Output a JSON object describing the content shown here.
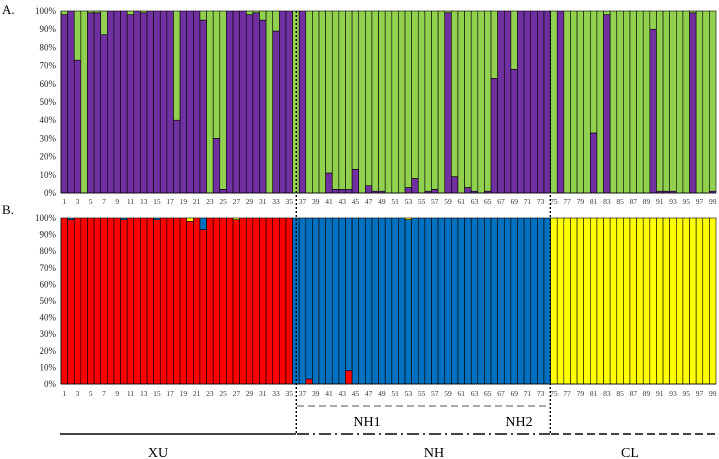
{
  "chart_data": [
    {
      "type": "bar",
      "stacked": true,
      "panel_label": "A.",
      "x": [
        1,
        2,
        3,
        4,
        5,
        6,
        7,
        8,
        9,
        10,
        11,
        12,
        13,
        14,
        15,
        16,
        17,
        18,
        19,
        20,
        21,
        22,
        23,
        24,
        25,
        26,
        27,
        28,
        29,
        30,
        31,
        32,
        33,
        34,
        35,
        36,
        37,
        38,
        39,
        40,
        41,
        42,
        43,
        44,
        45,
        46,
        47,
        48,
        49,
        50,
        51,
        52,
        53,
        54,
        55,
        56,
        57,
        58,
        59,
        60,
        61,
        62,
        63,
        64,
        65,
        66,
        67,
        68,
        69,
        70,
        71,
        72,
        73,
        74,
        75,
        76,
        77,
        78,
        79,
        80,
        81,
        82,
        83,
        84,
        85,
        86,
        87,
        88,
        89,
        90,
        91,
        92,
        93,
        94,
        95,
        96,
        97,
        98,
        99
      ],
      "x_tick_labels": [
        "1",
        "3",
        "5",
        "7",
        "9",
        "11",
        "13",
        "15",
        "17",
        "19",
        "21",
        "23",
        "25",
        "27",
        "29",
        "31",
        "33",
        "35",
        "37",
        "39",
        "41",
        "43",
        "45",
        "47",
        "49",
        "51",
        "53",
        "55",
        "57",
        "59",
        "61",
        "63",
        "65",
        "67",
        "69",
        "71",
        "73",
        "75",
        "77",
        "79",
        "81",
        "83",
        "85",
        "87",
        "89",
        "91",
        "93",
        "95",
        "97",
        "99"
      ],
      "y_tick_labels": [
        "0%",
        "10%",
        "20%",
        "30%",
        "40%",
        "50%",
        "60%",
        "70%",
        "80%",
        "90%",
        "100%"
      ],
      "ylim": [
        0,
        1
      ],
      "series": [
        {
          "color": "#7030a0",
          "values": [
            0.98,
            1.0,
            0.73,
            0.0,
            0.99,
            0.99,
            0.87,
            1.0,
            1.0,
            1.0,
            0.98,
            1.0,
            0.99,
            1.0,
            1.0,
            1.0,
            1.0,
            0.4,
            1.0,
            1.0,
            1.0,
            0.95,
            0.0,
            0.3,
            0.02,
            1.0,
            1.0,
            1.0,
            0.98,
            0.99,
            0.95,
            0.0,
            0.89,
            1.0,
            1.0,
            0.0,
            1.0,
            0.0,
            0.0,
            0.0,
            0.11,
            0.02,
            0.02,
            0.02,
            0.13,
            0.0,
            0.04,
            0.01,
            0.01,
            0.0,
            0.0,
            0.0,
            0.03,
            0.08,
            0.0,
            0.01,
            0.02,
            0.0,
            0.99,
            0.09,
            0.0,
            0.03,
            0.01,
            0.0,
            0.01,
            0.63,
            1.0,
            1.0,
            0.68,
            1.0,
            1.0,
            1.0,
            1.0,
            1.0,
            0.0,
            1.0,
            0.0,
            0.0,
            0.0,
            0.0,
            0.33,
            0.0,
            0.98,
            0.0,
            0.0,
            0.0,
            0.0,
            0.0,
            0.0,
            0.9,
            0.01,
            0.01,
            0.01,
            0.0,
            0.0,
            0.99,
            0.0,
            0.0,
            0.01
          ]
        },
        {
          "color": "#92d050",
          "values": [
            0.02,
            0.0,
            0.27,
            1.0,
            0.01,
            0.01,
            0.13,
            0.0,
            0.0,
            0.0,
            0.02,
            0.0,
            0.01,
            0.0,
            0.0,
            0.0,
            0.0,
            0.6,
            0.0,
            0.0,
            0.0,
            0.05,
            1.0,
            0.7,
            0.98,
            0.0,
            0.0,
            0.0,
            0.02,
            0.01,
            0.05,
            1.0,
            0.11,
            0.0,
            0.0,
            1.0,
            0.0,
            1.0,
            1.0,
            1.0,
            0.89,
            0.98,
            0.98,
            0.98,
            0.87,
            1.0,
            0.96,
            0.99,
            0.99,
            1.0,
            1.0,
            1.0,
            0.97,
            0.92,
            1.0,
            0.99,
            0.98,
            1.0,
            0.01,
            0.91,
            1.0,
            0.97,
            0.99,
            1.0,
            0.99,
            0.37,
            0.0,
            0.0,
            0.32,
            0.0,
            0.0,
            0.0,
            0.0,
            0.0,
            1.0,
            0.0,
            1.0,
            1.0,
            1.0,
            1.0,
            0.67,
            1.0,
            0.02,
            1.0,
            1.0,
            1.0,
            1.0,
            1.0,
            1.0,
            0.1,
            0.99,
            0.99,
            0.99,
            1.0,
            1.0,
            0.01,
            1.0,
            1.0,
            0.99
          ]
        }
      ]
    },
    {
      "type": "bar",
      "stacked": true,
      "panel_label": "B.",
      "x": [
        1,
        2,
        3,
        4,
        5,
        6,
        7,
        8,
        9,
        10,
        11,
        12,
        13,
        14,
        15,
        16,
        17,
        18,
        19,
        20,
        21,
        22,
        23,
        24,
        25,
        26,
        27,
        28,
        29,
        30,
        31,
        32,
        33,
        34,
        35,
        36,
        37,
        38,
        39,
        40,
        41,
        42,
        43,
        44,
        45,
        46,
        47,
        48,
        49,
        50,
        51,
        52,
        53,
        54,
        55,
        56,
        57,
        58,
        59,
        60,
        61,
        62,
        63,
        64,
        65,
        66,
        67,
        68,
        69,
        70,
        71,
        72,
        73,
        74,
        75,
        76,
        77,
        78,
        79,
        80,
        81,
        82,
        83,
        84,
        85,
        86,
        87,
        88,
        89,
        90,
        91,
        92,
        93,
        94,
        95,
        96,
        97,
        98,
        99
      ],
      "x_tick_labels": [
        "1",
        "3",
        "5",
        "7",
        "9",
        "11",
        "13",
        "15",
        "17",
        "19",
        "21",
        "23",
        "25",
        "27",
        "29",
        "31",
        "33",
        "35",
        "37",
        "39",
        "41",
        "43",
        "45",
        "47",
        "49",
        "51",
        "53",
        "55",
        "57",
        "59",
        "61",
        "63",
        "65",
        "67",
        "69",
        "71",
        "73",
        "75",
        "77",
        "79",
        "81",
        "83",
        "85",
        "87",
        "89",
        "91",
        "93",
        "95",
        "97",
        "99"
      ],
      "y_tick_labels": [
        "0%",
        "10%",
        "20%",
        "30%",
        "40%",
        "50%",
        "60%",
        "70%",
        "80%",
        "90%",
        "100%"
      ],
      "ylim": [
        0,
        1
      ],
      "series": [
        {
          "color": "#ff0000",
          "values": [
            1.0,
            0.99,
            1.0,
            1.0,
            1.0,
            1.0,
            1.0,
            1.0,
            1.0,
            0.99,
            1.0,
            1.0,
            1.0,
            1.0,
            0.99,
            1.0,
            1.0,
            1.0,
            1.0,
            0.98,
            1.0,
            0.93,
            1.0,
            1.0,
            1.0,
            1.0,
            0.99,
            1.0,
            1.0,
            1.0,
            1.0,
            1.0,
            1.0,
            1.0,
            1.0,
            0.0,
            0.0,
            0.03,
            0.0,
            0.0,
            0.0,
            0.0,
            0.0,
            0.08,
            0.0,
            0.0,
            0.0,
            0.0,
            0.0,
            0.0,
            0.0,
            0.0,
            0.0,
            0.0,
            0.0,
            0.0,
            0.0,
            0.0,
            0.0,
            0.0,
            0.0,
            0.0,
            0.0,
            0.0,
            0.0,
            0.0,
            0.0,
            0.0,
            0.0,
            0.0,
            0.0,
            0.0,
            0.0,
            0.0,
            0.0,
            0.0,
            0.0,
            0.0,
            0.0,
            0.0,
            0.0,
            0.0,
            0.0,
            0.0,
            0.0,
            0.0,
            0.0,
            0.0,
            0.0,
            0.0,
            0.0,
            0.0,
            0.0,
            0.0,
            0.0,
            0.0,
            0.0,
            0.0,
            0.0
          ]
        },
        {
          "color": "#0070c0",
          "values": [
            0.0,
            0.01,
            0.0,
            0.0,
            0.0,
            0.0,
            0.0,
            0.0,
            0.0,
            0.01,
            0.0,
            0.0,
            0.0,
            0.0,
            0.01,
            0.0,
            0.0,
            0.0,
            0.0,
            0.0,
            0.0,
            0.07,
            0.0,
            0.0,
            0.0,
            0.0,
            0.0,
            0.0,
            0.0,
            0.0,
            0.0,
            0.0,
            0.0,
            0.0,
            0.0,
            1.0,
            1.0,
            0.97,
            1.0,
            1.0,
            1.0,
            1.0,
            1.0,
            0.92,
            1.0,
            1.0,
            1.0,
            1.0,
            1.0,
            1.0,
            1.0,
            1.0,
            0.99,
            1.0,
            1.0,
            1.0,
            1.0,
            1.0,
            1.0,
            1.0,
            1.0,
            1.0,
            1.0,
            1.0,
            1.0,
            1.0,
            1.0,
            1.0,
            1.0,
            1.0,
            1.0,
            1.0,
            1.0,
            1.0,
            0.0,
            0.0,
            0.0,
            0.0,
            0.0,
            0.0,
            0.0,
            0.0,
            0.0,
            0.0,
            0.0,
            0.0,
            0.0,
            0.0,
            0.0,
            0.0,
            0.0,
            0.0,
            0.0,
            0.0,
            0.0,
            0.0,
            0.0,
            0.0,
            0.0
          ]
        },
        {
          "color": "#ffff00",
          "values": [
            0.0,
            0.0,
            0.0,
            0.0,
            0.0,
            0.0,
            0.0,
            0.0,
            0.0,
            0.0,
            0.0,
            0.0,
            0.0,
            0.0,
            0.0,
            0.0,
            0.0,
            0.0,
            0.0,
            0.02,
            0.0,
            0.0,
            0.0,
            0.0,
            0.0,
            0.0,
            0.01,
            0.0,
            0.0,
            0.0,
            0.0,
            0.0,
            0.0,
            0.0,
            0.0,
            0.0,
            0.0,
            0.0,
            0.0,
            0.0,
            0.0,
            0.0,
            0.0,
            0.0,
            0.0,
            0.0,
            0.0,
            0.0,
            0.0,
            0.0,
            0.0,
            0.0,
            0.01,
            0.0,
            0.0,
            0.0,
            0.0,
            0.0,
            0.0,
            0.0,
            0.0,
            0.0,
            0.0,
            0.0,
            0.0,
            0.0,
            0.0,
            0.0,
            0.0,
            0.0,
            0.0,
            0.0,
            0.0,
            0.0,
            1.0,
            1.0,
            1.0,
            1.0,
            1.0,
            1.0,
            1.0,
            1.0,
            1.0,
            1.0,
            1.0,
            1.0,
            1.0,
            1.0,
            1.0,
            1.0,
            1.0,
            1.0,
            1.0,
            1.0,
            1.0,
            1.0,
            1.0,
            1.0,
            1.0
          ]
        }
      ]
    }
  ],
  "groups": [
    {
      "label": "XU",
      "individuals": [
        1,
        35
      ],
      "line_style": "solid"
    },
    {
      "label": "NH",
      "individuals": [
        36,
        74
      ],
      "line_style": "dash-dot"
    },
    {
      "label": "CL",
      "individuals": [
        75,
        99
      ],
      "line_style": "dashed"
    }
  ],
  "subgroups": [
    {
      "label": "NH1"
    },
    {
      "label": "NH2"
    }
  ]
}
